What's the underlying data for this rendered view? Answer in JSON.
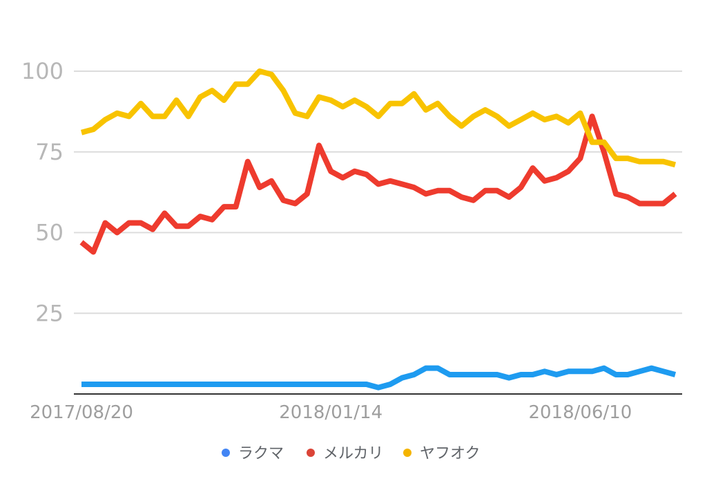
{
  "chart_data": {
    "type": "line",
    "title": "",
    "xlabel": "",
    "ylabel": "",
    "ylim": [
      0,
      100
    ],
    "yticks": [
      25,
      50,
      75,
      100
    ],
    "grid": true,
    "legend_position": "bottom",
    "x_tick_labels": [
      "2017/08/20",
      "2018/01/14",
      "2018/06/10"
    ],
    "x_tick_indices": [
      0,
      21,
      42
    ],
    "series": [
      {
        "name": "ラクマ",
        "color": "#4285f4",
        "stroke": "#1e9bf0",
        "values": [
          3,
          3,
          3,
          3,
          3,
          3,
          3,
          3,
          3,
          3,
          3,
          3,
          3,
          3,
          3,
          3,
          3,
          3,
          3,
          3,
          3,
          3,
          3,
          3,
          3,
          2,
          3,
          5,
          6,
          8,
          8,
          6,
          6,
          6,
          6,
          6,
          5,
          6,
          6,
          7,
          6,
          7,
          7,
          7,
          8,
          6,
          6,
          7,
          8,
          7,
          6
        ]
      },
      {
        "name": "メルカリ",
        "color": "#db4437",
        "stroke": "#ee3b2e",
        "values": [
          47,
          44,
          53,
          50,
          53,
          53,
          51,
          56,
          52,
          52,
          55,
          54,
          58,
          58,
          72,
          64,
          66,
          60,
          59,
          62,
          77,
          69,
          67,
          69,
          68,
          65,
          66,
          65,
          64,
          62,
          63,
          63,
          61,
          60,
          63,
          63,
          61,
          64,
          70,
          66,
          67,
          69,
          73,
          86,
          75,
          62,
          61,
          59,
          59,
          59,
          62
        ]
      },
      {
        "name": "ヤフオク",
        "color": "#f4b400",
        "stroke": "#f8c300",
        "values": [
          81,
          82,
          85,
          87,
          86,
          90,
          86,
          86,
          91,
          86,
          92,
          94,
          91,
          96,
          96,
          100,
          99,
          94,
          87,
          86,
          92,
          91,
          89,
          91,
          89,
          86,
          90,
          90,
          93,
          88,
          90,
          86,
          83,
          86,
          88,
          86,
          83,
          85,
          87,
          85,
          86,
          84,
          87,
          78,
          78,
          73,
          73,
          72,
          72,
          72,
          71
        ]
      }
    ]
  }
}
